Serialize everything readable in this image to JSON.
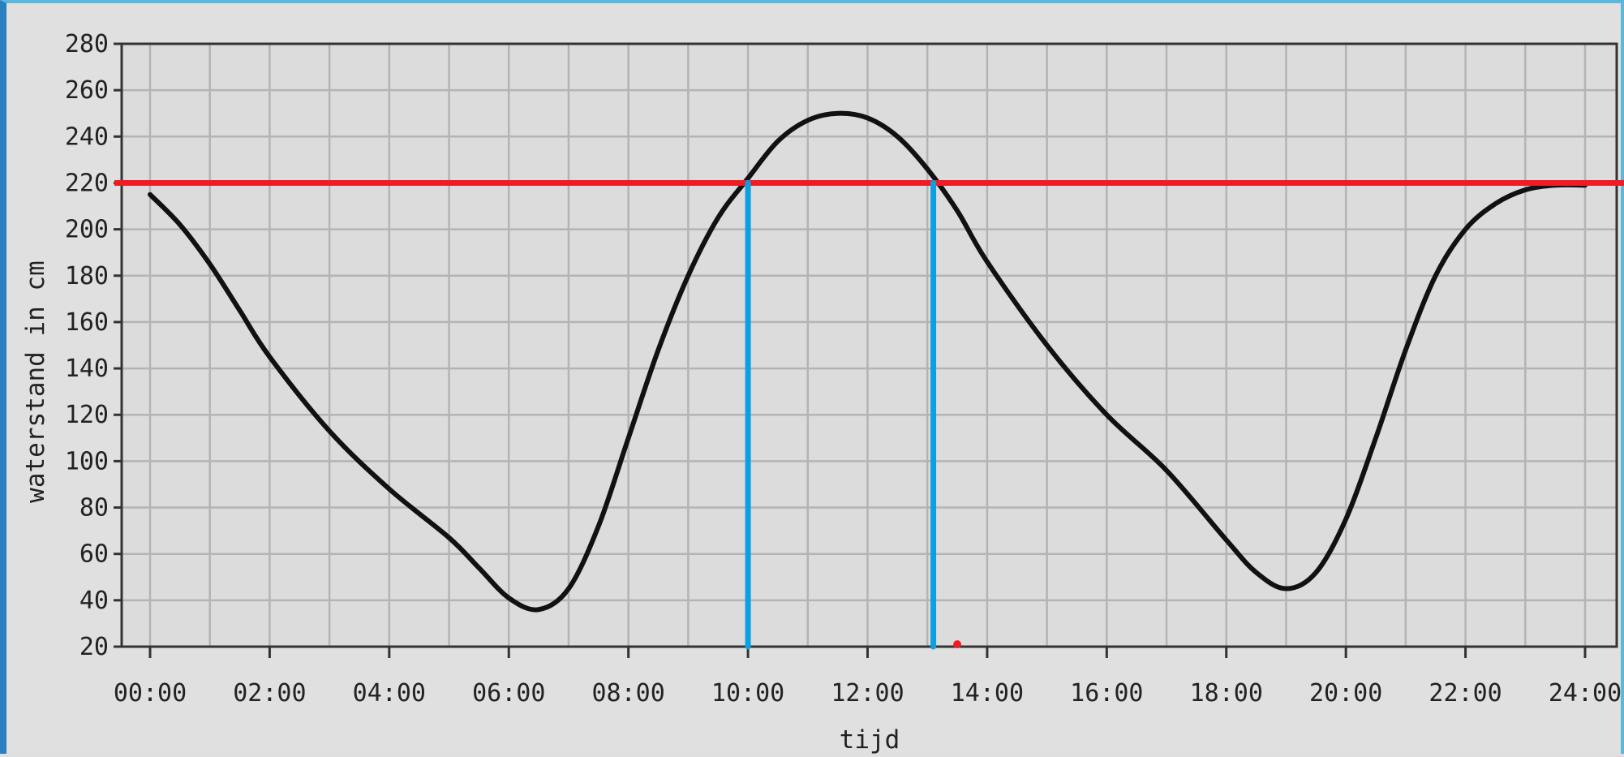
{
  "chart_data": {
    "type": "line",
    "title": "",
    "xlabel": "tijd",
    "ylabel": "waterstand in cm",
    "x_ticks": [
      "00:00",
      "02:00",
      "04:00",
      "06:00",
      "08:00",
      "10:00",
      "12:00",
      "14:00",
      "16:00",
      "18:00",
      "20:00",
      "22:00",
      "24:00"
    ],
    "y_ticks": [
      20,
      40,
      60,
      80,
      100,
      120,
      140,
      160,
      180,
      200,
      220,
      240,
      260,
      280
    ],
    "xlim_hours": [
      0,
      24
    ],
    "ylim": [
      20,
      280
    ],
    "grid": true,
    "series": [
      {
        "color": "#111111",
        "x_hours": [
          0,
          0.5,
          1,
          1.5,
          2,
          3,
          4,
          5,
          5.5,
          6,
          6.5,
          7,
          7.5,
          8,
          8.5,
          9,
          9.5,
          10,
          10.5,
          11,
          11.5,
          12,
          12.5,
          13,
          13.5,
          14,
          15,
          16,
          17,
          18,
          18.5,
          19,
          19.5,
          20,
          20.5,
          21,
          21.5,
          22,
          22.5,
          23,
          23.5,
          24
        ],
        "values": [
          215,
          202,
          185,
          165,
          145,
          113,
          88,
          67,
          54,
          41,
          36,
          45,
          72,
          110,
          148,
          180,
          205,
          222,
          238,
          247,
          250,
          248,
          240,
          226,
          208,
          186,
          150,
          120,
          96,
          66,
          52,
          45,
          52,
          75,
          110,
          148,
          180,
          200,
          211,
          217,
          219,
          219
        ]
      }
    ],
    "annotations": {
      "threshold_line": {
        "value": 220,
        "color": "#ee1c25"
      },
      "crossing_lines": [
        {
          "x_hours": 10.0,
          "color": "#0da0e0"
        },
        {
          "x_hours": 13.1,
          "color": "#0da0e0"
        }
      ],
      "marker_dot": {
        "x_hours": 13.5,
        "value": 21,
        "color": "#ee1c25"
      }
    }
  }
}
